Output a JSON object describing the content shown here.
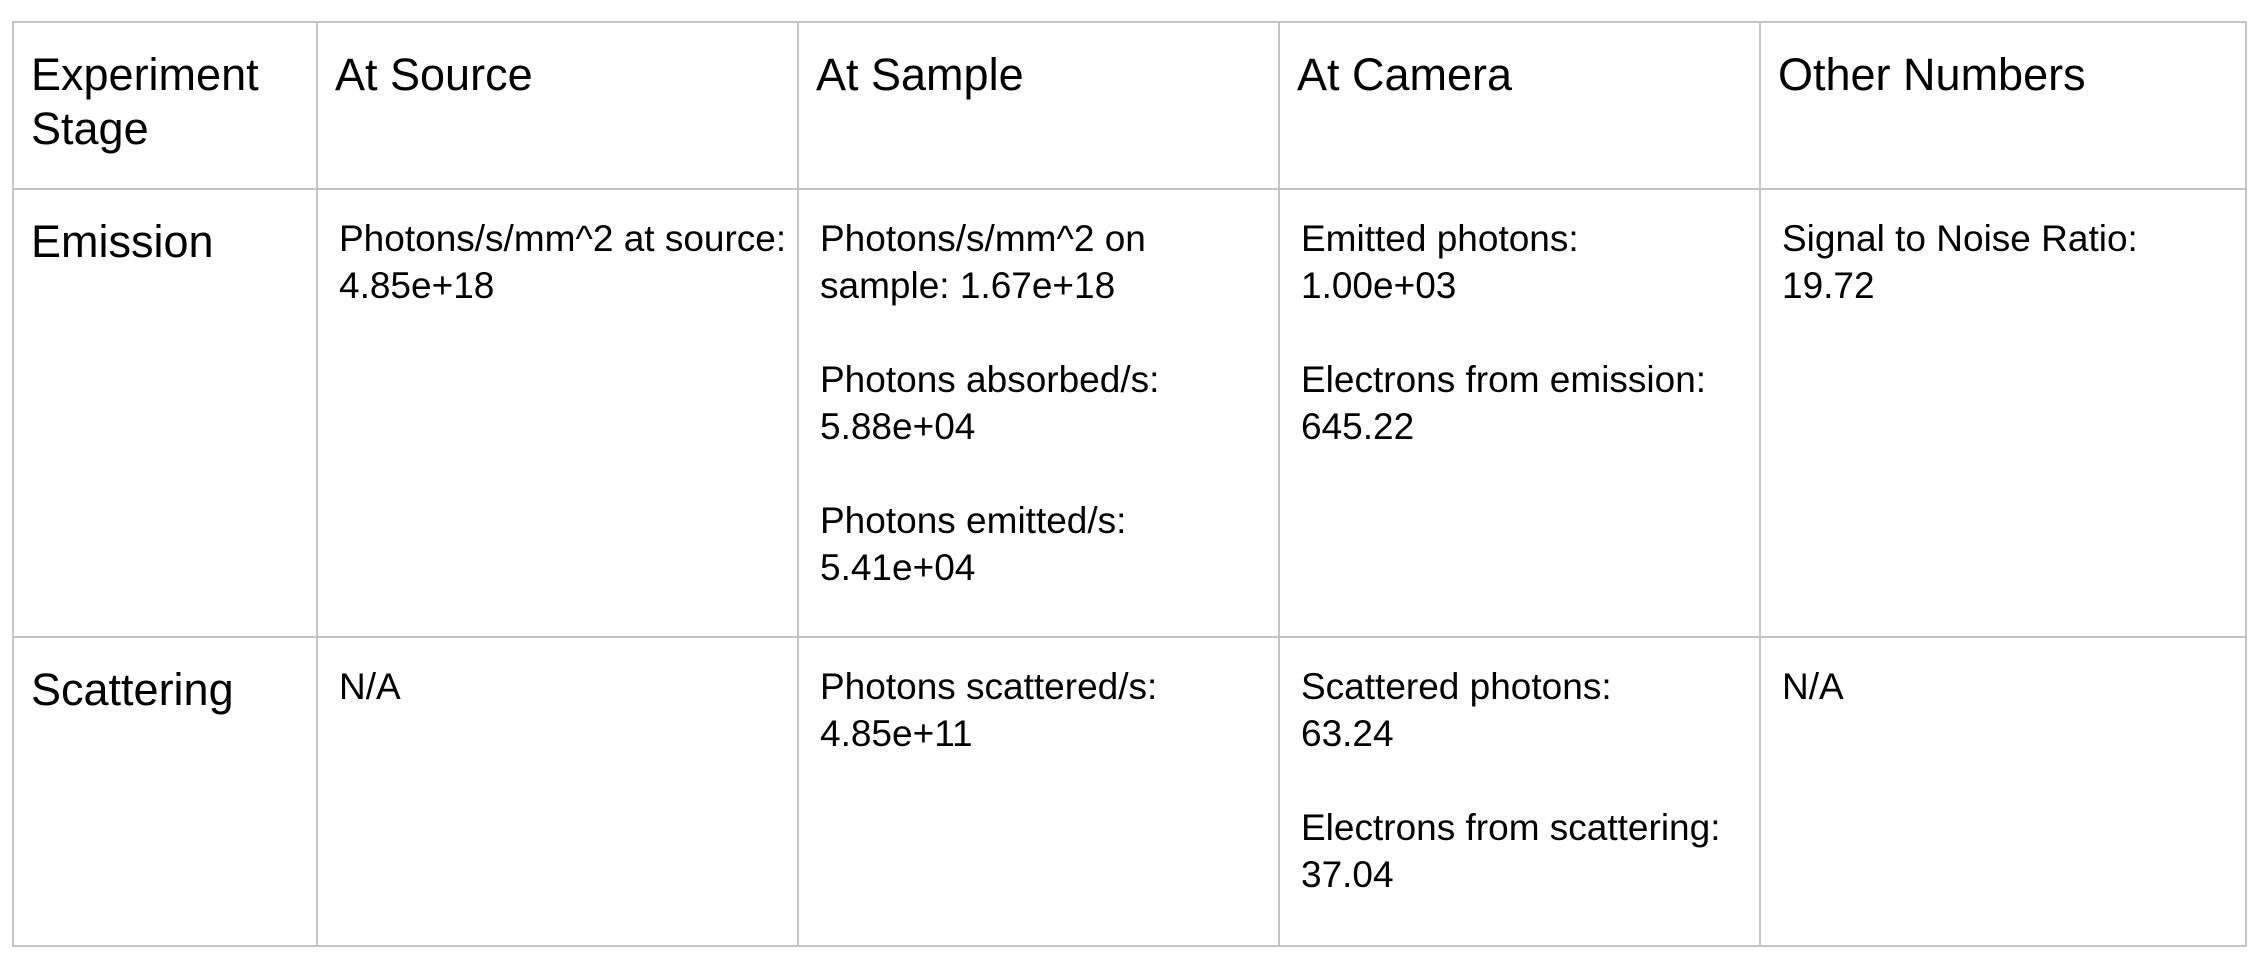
{
  "headers": [
    "Experiment Stage",
    "At Source",
    "At Sample",
    "At Camera",
    "Other Numbers"
  ],
  "rows": [
    {
      "stage": "Emission",
      "at_source": [
        {
          "label": "Photons/s/mm^2 at source:",
          "value": "4.85e+18"
        }
      ],
      "at_sample": [
        {
          "label": "Photons/s/mm^2 on sample:",
          "value": "1.67e+18"
        },
        {
          "label": "Photons absorbed/s:",
          "value": "5.88e+04"
        },
        {
          "label": "Photons emitted/s:",
          "value": "5.41e+04"
        }
      ],
      "at_camera": [
        {
          "label": "Emitted photons:",
          "value": "1.00e+03"
        },
        {
          "label": "Electrons from emission:",
          "value": "645.22"
        }
      ],
      "other": [
        {
          "label": "Signal to Noise Ratio:",
          "value": "19.72"
        }
      ]
    },
    {
      "stage": "Scattering",
      "at_source": "N/A",
      "at_sample": [
        {
          "label": "Photons scattered/s:",
          "value": "4.85e+11"
        }
      ],
      "at_camera": [
        {
          "label": "Scattered photons:",
          "value": "63.24"
        },
        {
          "label": "Electrons from scattering:",
          "value": " 37.04"
        }
      ],
      "other": "N/A"
    }
  ]
}
